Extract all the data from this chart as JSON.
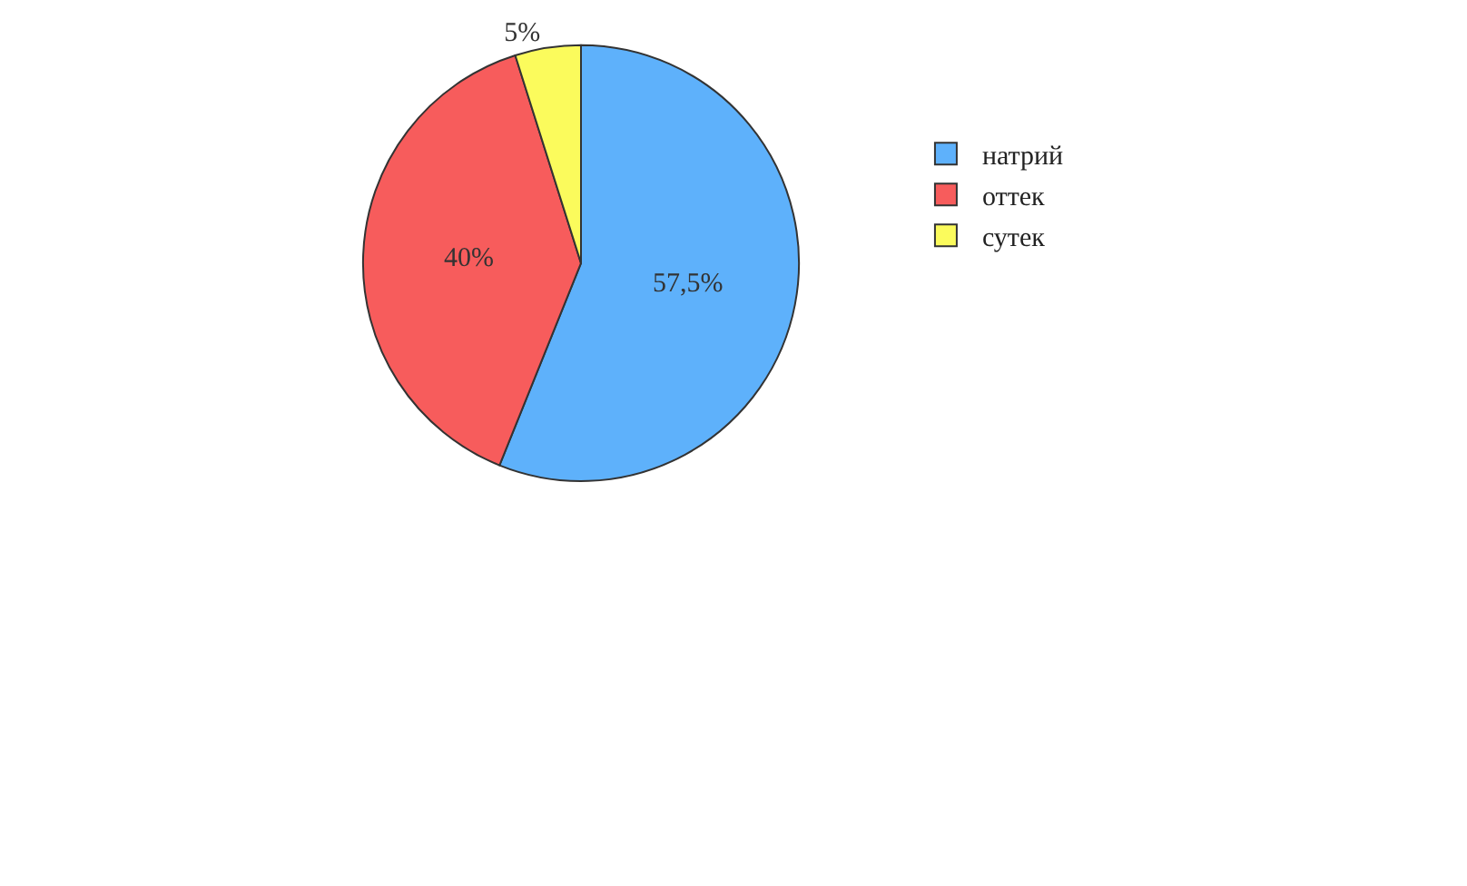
{
  "chart_data": {
    "type": "pie",
    "categories": [
      "натрий",
      "оттек",
      "сутек"
    ],
    "values": [
      57.5,
      40,
      5
    ],
    "value_labels": [
      "57,5%",
      "40%",
      "5%"
    ],
    "colors": [
      "#5eb1fb",
      "#f75c5c",
      "#fbfb5c"
    ],
    "legend": "right"
  }
}
